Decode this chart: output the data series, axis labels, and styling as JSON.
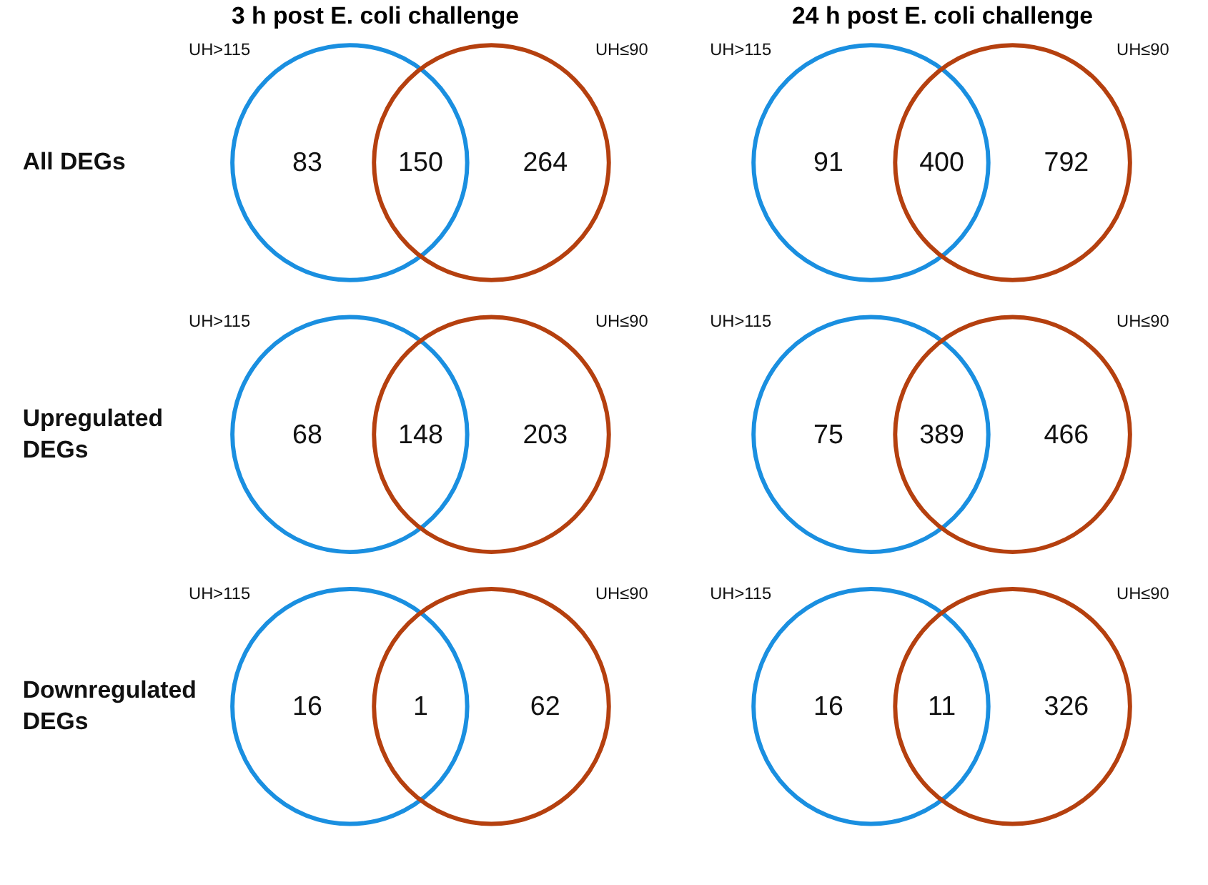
{
  "chart_data": [
    {
      "type": "other",
      "title": "3 h post E. coli challenge",
      "ylabel": "All DEGs",
      "categories": [
        "UH>115",
        null,
        "UH≤90"
      ],
      "values": [
        83,
        150,
        264
      ],
      "colors": [
        "#1a8fe0",
        null,
        "#b5400f"
      ],
      "data_labels": true
    },
    {
      "type": "other",
      "title": "24 h post E. coli challenge",
      "categories": [
        "UH>115",
        null,
        "UH≤90"
      ],
      "values": [
        91,
        400,
        792
      ],
      "colors": [
        "#1a8fe0",
        null,
        "#b5400f"
      ],
      "data_labels": true
    },
    {
      "type": "other",
      "ylabel": "Upregulated DEGs",
      "categories": [
        "UH>115",
        null,
        "UH≤90"
      ],
      "values": [
        68,
        148,
        203
      ],
      "colors": [
        "#1a8fe0",
        null,
        "#b5400f"
      ],
      "data_labels": true
    },
    {
      "type": "other",
      "categories": [
        "UH>115",
        null,
        "UH≤90"
      ],
      "values": [
        75,
        389,
        466
      ],
      "colors": [
        "#1a8fe0",
        null,
        "#b5400f"
      ],
      "data_labels": true
    },
    {
      "type": "other",
      "ylabel": "Downregulated DEGs",
      "categories": [
        "UH>115",
        null,
        "UH≤90"
      ],
      "values": [
        16,
        1,
        62
      ],
      "colors": [
        "#1a8fe0",
        null,
        "#b5400f"
      ],
      "data_labels": true
    },
    {
      "type": "other",
      "categories": [
        "UH>115",
        null,
        "UH≤90"
      ],
      "values": [
        16,
        11,
        326
      ],
      "colors": [
        "#1a8fe0",
        null,
        "#b5400f"
      ],
      "data_labels": true
    }
  ]
}
